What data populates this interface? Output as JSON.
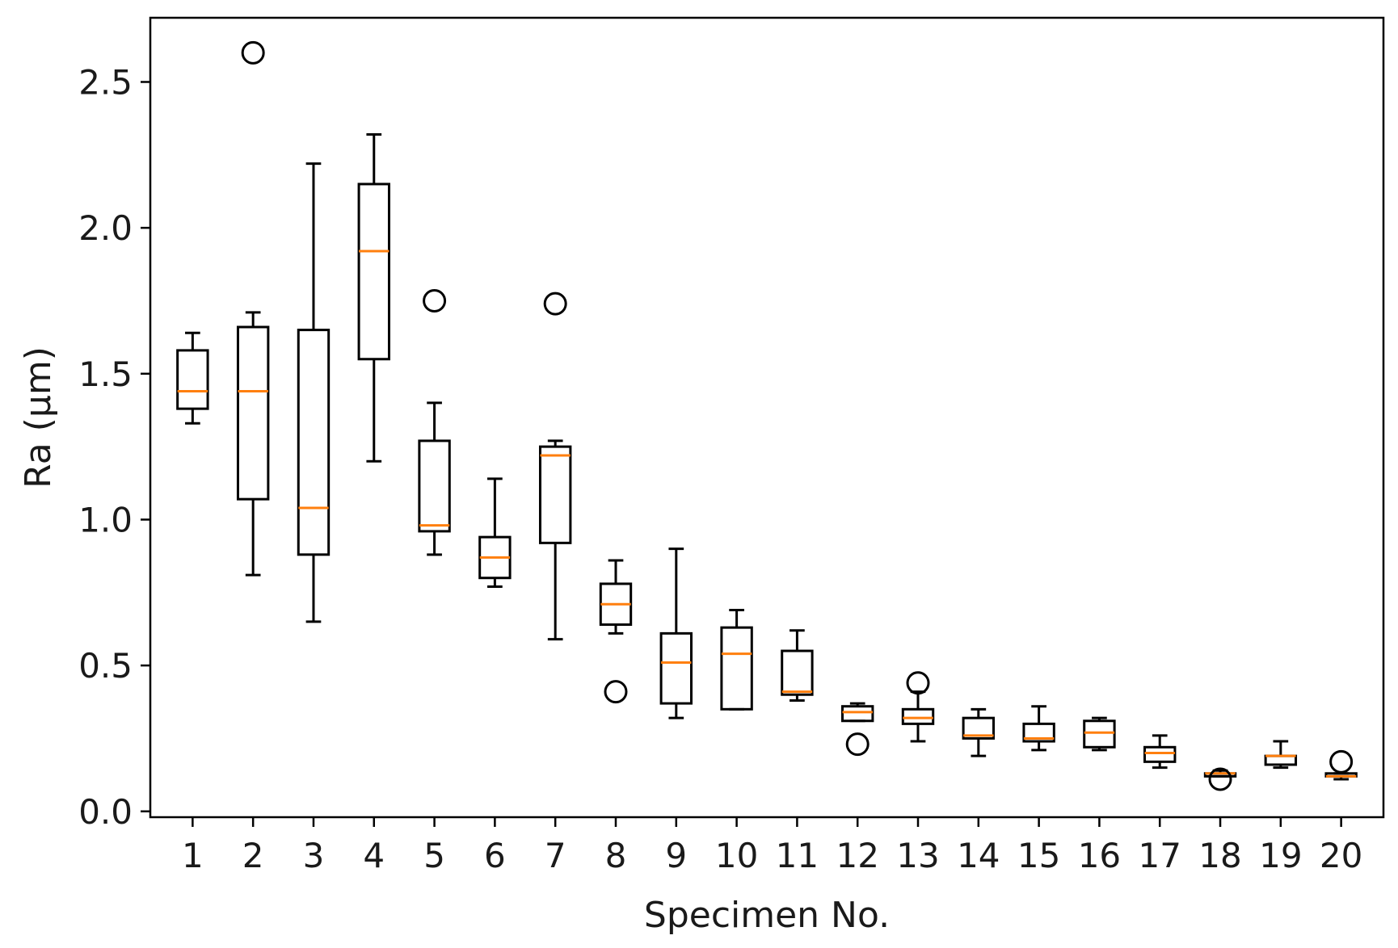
{
  "chart_data": {
    "type": "box",
    "title": "",
    "xlabel": "Specimen No.",
    "ylabel": "Ra (µm)",
    "ylim": [
      -0.02,
      2.72
    ],
    "yticks": [
      0.0,
      0.5,
      1.0,
      1.5,
      2.0,
      2.5
    ],
    "ytick_labels": [
      "0.0",
      "0.5",
      "1.0",
      "1.5",
      "2.0",
      "2.5"
    ],
    "grid": false,
    "colors": {
      "box": "#000000",
      "median": "#ff7f0e",
      "outlier": "#000000",
      "axis": "#000000"
    },
    "categories": [
      "1",
      "2",
      "3",
      "4",
      "5",
      "6",
      "7",
      "8",
      "9",
      "10",
      "11",
      "12",
      "13",
      "14",
      "15",
      "16",
      "17",
      "18",
      "19",
      "20"
    ],
    "boxes": [
      {
        "label": "1",
        "whislo": 1.33,
        "q1": 1.38,
        "med": 1.44,
        "q3": 1.58,
        "whishi": 1.64,
        "fliers": []
      },
      {
        "label": "2",
        "whislo": 0.81,
        "q1": 1.07,
        "med": 1.44,
        "q3": 1.66,
        "whishi": 1.71,
        "fliers": [
          2.6
        ]
      },
      {
        "label": "3",
        "whislo": 0.65,
        "q1": 0.88,
        "med": 1.04,
        "q3": 1.65,
        "whishi": 2.22,
        "fliers": []
      },
      {
        "label": "4",
        "whislo": 1.2,
        "q1": 1.55,
        "med": 1.92,
        "q3": 2.15,
        "whishi": 2.32,
        "fliers": []
      },
      {
        "label": "5",
        "whislo": 0.88,
        "q1": 0.96,
        "med": 0.98,
        "q3": 1.27,
        "whishi": 1.4,
        "fliers": [
          1.75
        ]
      },
      {
        "label": "6",
        "whislo": 0.77,
        "q1": 0.8,
        "med": 0.87,
        "q3": 0.94,
        "whishi": 1.14,
        "fliers": []
      },
      {
        "label": "7",
        "whislo": 0.59,
        "q1": 0.92,
        "med": 1.22,
        "q3": 1.25,
        "whishi": 1.27,
        "fliers": [
          1.74
        ]
      },
      {
        "label": "8",
        "whislo": 0.61,
        "q1": 0.64,
        "med": 0.71,
        "q3": 0.78,
        "whishi": 0.86,
        "fliers": [
          0.41
        ]
      },
      {
        "label": "9",
        "whislo": 0.32,
        "q1": 0.37,
        "med": 0.51,
        "q3": 0.61,
        "whishi": 0.9,
        "fliers": []
      },
      {
        "label": "10",
        "whislo": 0.35,
        "q1": 0.35,
        "med": 0.54,
        "q3": 0.63,
        "whishi": 0.69,
        "fliers": []
      },
      {
        "label": "11",
        "whislo": 0.38,
        "q1": 0.4,
        "med": 0.41,
        "q3": 0.55,
        "whishi": 0.62,
        "fliers": []
      },
      {
        "label": "12",
        "whislo": 0.31,
        "q1": 0.31,
        "med": 0.34,
        "q3": 0.36,
        "whishi": 0.37,
        "fliers": [
          0.23
        ]
      },
      {
        "label": "13",
        "whislo": 0.24,
        "q1": 0.3,
        "med": 0.32,
        "q3": 0.35,
        "whishi": 0.41,
        "fliers": [
          0.44
        ]
      },
      {
        "label": "14",
        "whislo": 0.19,
        "q1": 0.25,
        "med": 0.26,
        "q3": 0.32,
        "whishi": 0.35,
        "fliers": []
      },
      {
        "label": "15",
        "whislo": 0.21,
        "q1": 0.24,
        "med": 0.25,
        "q3": 0.3,
        "whishi": 0.36,
        "fliers": []
      },
      {
        "label": "16",
        "whislo": 0.21,
        "q1": 0.22,
        "med": 0.27,
        "q3": 0.31,
        "whishi": 0.32,
        "fliers": []
      },
      {
        "label": "17",
        "whislo": 0.15,
        "q1": 0.17,
        "med": 0.2,
        "q3": 0.22,
        "whishi": 0.26,
        "fliers": []
      },
      {
        "label": "18",
        "whislo": 0.12,
        "q1": 0.12,
        "med": 0.13,
        "q3": 0.13,
        "whishi": 0.14,
        "fliers": [
          0.11
        ]
      },
      {
        "label": "19",
        "whislo": 0.15,
        "q1": 0.16,
        "med": 0.19,
        "q3": 0.19,
        "whishi": 0.24,
        "fliers": []
      },
      {
        "label": "20",
        "whislo": 0.11,
        "q1": 0.12,
        "med": 0.12,
        "q3": 0.13,
        "whishi": 0.13,
        "fliers": [
          0.17
        ]
      }
    ]
  }
}
